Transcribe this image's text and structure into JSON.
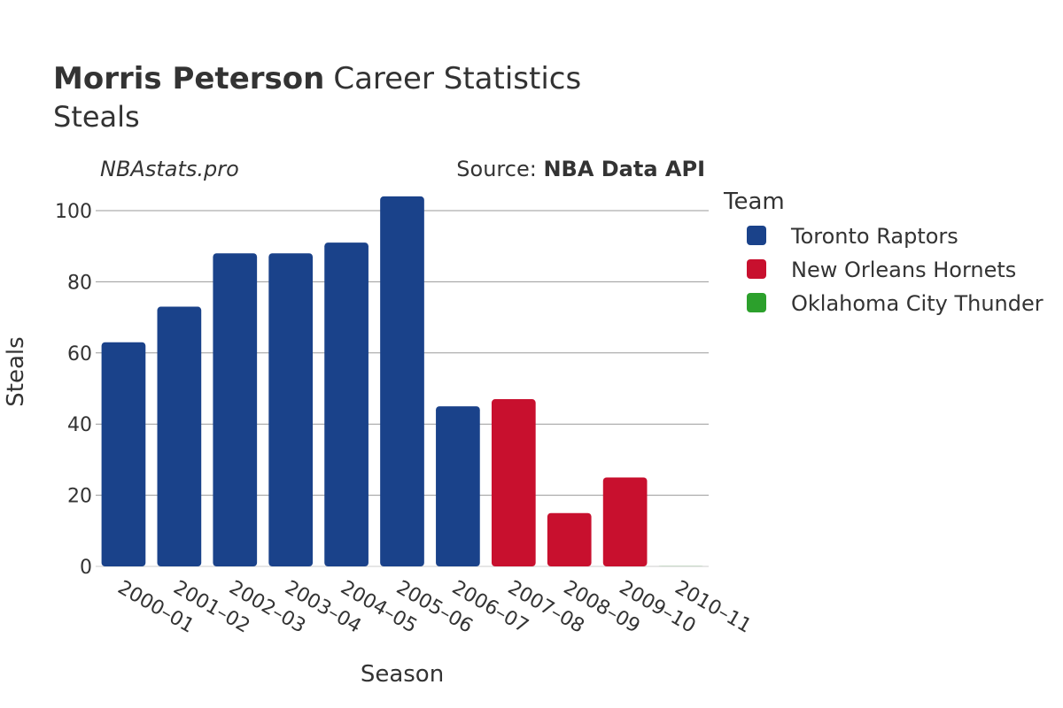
{
  "header": {
    "player_name": "Morris Peterson",
    "title_rest": "Career Statistics",
    "subtitle": "Steals"
  },
  "credits": {
    "site": "NBAstats.pro",
    "source_prefix": "Source: ",
    "source_name": "NBA Data API"
  },
  "legend": {
    "title": "Team",
    "placement": "top-right",
    "items": [
      {
        "label": "Toronto Raptors",
        "color": "#1a428a"
      },
      {
        "label": "New Orleans Hornets",
        "color": "#c8102e"
      },
      {
        "label": "Oklahoma City Thunder",
        "color": "#2ca02c"
      }
    ]
  },
  "chart_data": {
    "type": "bar",
    "title": "Morris Peterson Career Statistics",
    "subtitle": "Steals",
    "xlabel": "Season",
    "ylabel": "Steals",
    "ylim": [
      0,
      110
    ],
    "yticks": [
      0,
      20,
      40,
      60,
      80,
      100
    ],
    "grid": true,
    "categories": [
      "2000–01",
      "2001–02",
      "2002–03",
      "2003–04",
      "2004–05",
      "2005–06",
      "2006–07",
      "2007–08",
      "2008–09",
      "2009–10",
      "2010–11"
    ],
    "series": [
      {
        "name": "Toronto Raptors",
        "color": "#1a428a",
        "values": [
          63,
          73,
          88,
          88,
          91,
          104,
          45,
          null,
          null,
          null,
          null
        ]
      },
      {
        "name": "New Orleans Hornets",
        "color": "#c8102e",
        "values": [
          null,
          null,
          null,
          null,
          null,
          null,
          null,
          47,
          15,
          25,
          null
        ]
      },
      {
        "name": "Oklahoma City Thunder",
        "color": "#2ca02c",
        "values": [
          null,
          null,
          null,
          null,
          null,
          null,
          null,
          null,
          null,
          null,
          0
        ]
      }
    ]
  }
}
